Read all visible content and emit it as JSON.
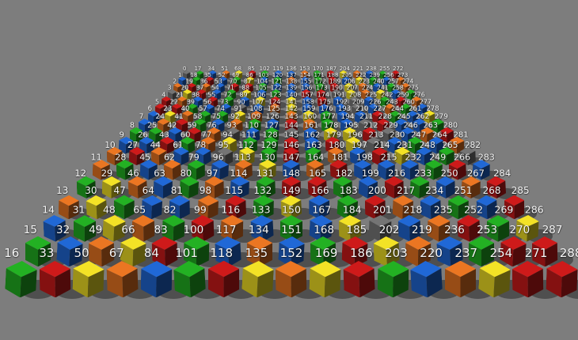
{
  "scene": {
    "description": "3D perspective scene: 17x17 grid of numbered colored cubes on gray ground",
    "background_color": "#7d7d7d",
    "label_color": "#f5f5f5",
    "shadow_color": "#3c3c3c"
  },
  "palette": {
    "red": "#b81717",
    "green": "#1f9e1f",
    "blue": "#1d5dbf",
    "yellow": "#d9ca22",
    "orange": "#d2691e",
    "gray": "#6e6e6e"
  },
  "grid": {
    "rows": 17,
    "cols": 17,
    "numbering": "number = row + 17 * column, rows nearest camera have highest row index",
    "row_data": [
      {
        "numbers": [
          0,
          17,
          34,
          51,
          68,
          85,
          102,
          119,
          136,
          153,
          170,
          187,
          204,
          221,
          238,
          255,
          272
        ],
        "colors": [
          "gray",
          "green",
          "blue",
          "orange",
          "yellow",
          "red",
          "green",
          "blue",
          "blue",
          "orange",
          "green",
          "red",
          "yellow",
          "orange",
          "blue",
          "green",
          "red"
        ]
      },
      {
        "numbers": [
          1,
          18,
          35,
          52,
          69,
          86,
          103,
          120,
          137,
          154,
          171,
          188,
          205,
          222,
          239,
          256,
          273
        ],
        "colors": [
          "blue",
          "green",
          "red",
          "blue",
          "green",
          "yellow",
          "blue",
          "green",
          "orange",
          "blue",
          "green",
          "red",
          "blue",
          "yellow",
          "green",
          "blue",
          "orange"
        ]
      },
      {
        "numbers": [
          2,
          19,
          36,
          53,
          70,
          87,
          104,
          121,
          138,
          155,
          172,
          189,
          206,
          223,
          240,
          257,
          274
        ],
        "colors": [
          "orange",
          "red",
          "orange",
          "blue",
          "red",
          "red",
          "green",
          "blue",
          "blue",
          "blue",
          "green",
          "red",
          "yellow",
          "orange",
          "blue",
          "green",
          "orange"
        ]
      },
      {
        "numbers": [
          3,
          20,
          37,
          54,
          71,
          88,
          105,
          122,
          139,
          156,
          173,
          190,
          207,
          224,
          241,
          258,
          275
        ],
        "colors": [
          "gray",
          "yellow",
          "red",
          "blue",
          "green",
          "yellow",
          "blue",
          "green",
          "blue",
          "red",
          "red",
          "gray",
          "yellow",
          "orange",
          "yellow",
          "blue",
          "green"
        ]
      },
      {
        "numbers": [
          4,
          21,
          38,
          55,
          72,
          89,
          106,
          123,
          140,
          157,
          174,
          191,
          208,
          225,
          242,
          259,
          276
        ],
        "colors": [
          "red",
          "orange",
          "blue",
          "red",
          "green",
          "blue",
          "yellow",
          "red",
          "yellow",
          "blue",
          "red",
          "blue",
          "gray",
          "blue",
          "green",
          "red",
          "orange"
        ]
      },
      {
        "numbers": [
          5,
          22,
          39,
          56,
          73,
          90,
          107,
          124,
          141,
          158,
          175,
          192,
          209,
          226,
          243,
          260,
          277
        ],
        "colors": [
          "red",
          "red",
          "green",
          "blue",
          "blue",
          "gray",
          "blue",
          "orange",
          "yellow",
          "blue",
          "blue",
          "blue",
          "gray",
          "blue",
          "orange",
          "green",
          "blue"
        ]
      },
      {
        "numbers": [
          6,
          23,
          40,
          57,
          74,
          91,
          108,
          125,
          142,
          159,
          176,
          193,
          210,
          227,
          244,
          261,
          278
        ],
        "colors": [
          "blue",
          "yellow",
          "orange",
          "green",
          "green",
          "yellow",
          "orange",
          "gray",
          "orange",
          "yellow",
          "green",
          "blue",
          "blue",
          "red",
          "green",
          "blue",
          "yellow"
        ]
      },
      {
        "numbers": [
          7,
          24,
          41,
          58,
          75,
          92,
          109,
          126,
          143,
          160,
          177,
          194,
          211,
          228,
          245,
          262,
          279
        ],
        "colors": [
          "blue",
          "orange",
          "red",
          "green",
          "blue",
          "orange",
          "green",
          "blue",
          "red",
          "orange",
          "green",
          "blue",
          "gray",
          "red",
          "blue",
          "blue",
          "green"
        ]
      },
      {
        "numbers": [
          8,
          25,
          42,
          59,
          76,
          93,
          110,
          127,
          144,
          161,
          178,
          195,
          212,
          229,
          246,
          263,
          280
        ],
        "colors": [
          "green",
          "green",
          "blue",
          "red",
          "orange",
          "gray",
          "blue",
          "green",
          "gray",
          "blue",
          "yellow",
          "yellow",
          "red",
          "gray",
          "blue",
          "orange",
          "red"
        ]
      },
      {
        "numbers": [
          9,
          26,
          43,
          60,
          77,
          94,
          111,
          128,
          145,
          162,
          179,
          196,
          213,
          230,
          247,
          264,
          281
        ],
        "colors": [
          "blue",
          "blue",
          "red",
          "green",
          "orange",
          "yellow",
          "green",
          "green",
          "red",
          "blue",
          "red",
          "yellow",
          "gray",
          "blue",
          "green",
          "blue",
          "orange"
        ]
      },
      {
        "numbers": [
          10,
          27,
          44,
          61,
          78,
          95,
          112,
          129,
          146,
          163,
          180,
          197,
          214,
          231,
          248,
          265,
          282
        ],
        "colors": [
          "orange",
          "red",
          "orange",
          "blue",
          "blue",
          "gray",
          "yellow",
          "green",
          "red",
          "green",
          "orange",
          "blue",
          "red",
          "yellow",
          "blue",
          "green",
          "gray"
        ]
      },
      {
        "numbers": [
          11,
          28,
          45,
          62,
          79,
          96,
          113,
          130,
          147,
          164,
          181,
          198,
          215,
          232,
          249,
          266,
          283
        ],
        "colors": [
          "orange",
          "green",
          "blue",
          "orange",
          "green",
          "blue",
          "orange",
          "yellow",
          "blue",
          "orange",
          "red",
          "blue",
          "blue",
          "blue",
          "green",
          "red",
          "blue"
        ]
      },
      {
        "numbers": [
          12,
          29,
          46,
          63,
          80,
          97,
          114,
          131,
          148,
          165,
          182,
          199,
          216,
          233,
          250,
          267,
          284
        ],
        "colors": [
          "green",
          "yellow",
          "orange",
          "blue",
          "green",
          "orange",
          "blue",
          "green",
          "red",
          "red",
          "green",
          "blue",
          "red",
          "green",
          "blue",
          "orange",
          "red"
        ]
      },
      {
        "numbers": [
          13,
          30,
          47,
          64,
          81,
          98,
          115,
          132,
          149,
          166,
          183,
          200,
          217,
          234,
          251,
          268,
          285
        ],
        "colors": [
          "orange",
          "yellow",
          "green",
          "blue",
          "blue",
          "orange",
          "red",
          "green",
          "yellow",
          "blue",
          "green",
          "red",
          "orange",
          "blue",
          "green",
          "blue",
          "red"
        ]
      },
      {
        "numbers": [
          14,
          31,
          48,
          65,
          82,
          99,
          116,
          133,
          150,
          167,
          184,
          201,
          218,
          235,
          252,
          269,
          286
        ],
        "colors": [
          "blue",
          "green",
          "yellow",
          "orange",
          "green",
          "red",
          "orange",
          "blue",
          "green",
          "blue",
          "yellow",
          "gray",
          "blue",
          "orange",
          "red",
          "green",
          "yellow"
        ]
      },
      {
        "numbers": [
          15,
          32,
          49,
          66,
          83,
          100,
          117,
          134,
          151,
          168,
          185,
          202,
          219,
          236,
          253,
          270,
          287
        ],
        "colors": [
          "green",
          "blue",
          "orange",
          "yellow",
          "red",
          "green",
          "blue",
          "orange",
          "blue",
          "green",
          "red",
          "yellow",
          "orange",
          "blue",
          "green",
          "red",
          "red"
        ]
      },
      {
        "numbers": [
          16,
          33,
          50,
          67,
          84,
          101,
          118,
          135,
          152,
          169,
          186,
          203,
          220,
          237,
          254,
          271,
          288
        ],
        "colors": [
          "green",
          "red",
          "yellow",
          "orange",
          "blue",
          "green",
          "red",
          "yellow",
          "orange",
          "yellow",
          "red",
          "green",
          "blue",
          "orange",
          "yellow",
          "red",
          "red"
        ]
      }
    ]
  }
}
